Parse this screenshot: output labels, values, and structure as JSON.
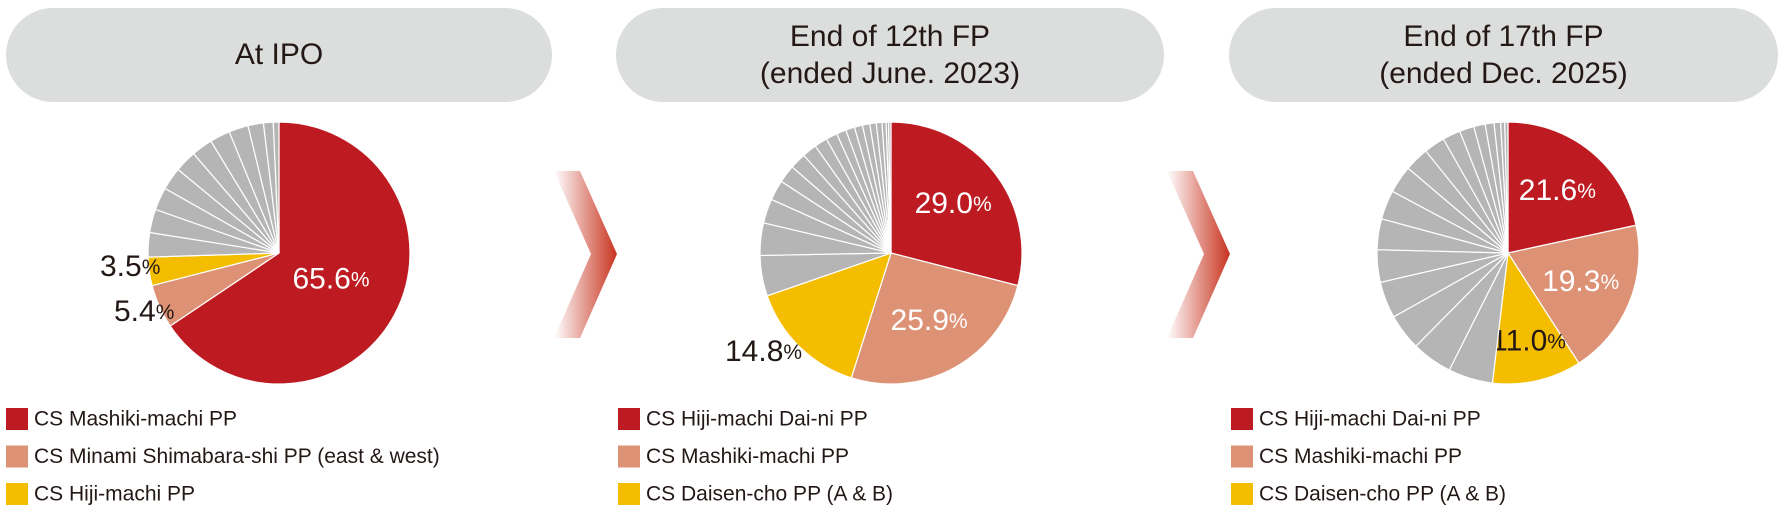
{
  "chart_data": [
    {
      "type": "pie",
      "title": "At IPO",
      "categories": [
        "CS Mashiki-machi PP",
        "CS Minami Shimabara-shi PP (east & west)",
        "CS Hiji-machi PP",
        null,
        null,
        null,
        null,
        null,
        null,
        null,
        null,
        null,
        null,
        null
      ],
      "values": [
        65.6,
        5.4,
        3.5,
        3.0,
        2.9,
        2.8,
        2.8,
        2.7,
        2.6,
        2.5,
        2.4,
        1.9,
        1.2,
        0.7
      ],
      "value_labels": [
        "65.6%",
        "5.4%",
        "3.5%",
        null,
        null,
        null,
        null,
        null,
        null,
        null,
        null,
        null,
        null,
        null
      ],
      "colors": [
        "#be1a21",
        "#de9275",
        "#f5bd00",
        "#b5b5b5",
        "#b5b5b5",
        "#b5b5b5",
        "#b5b5b5",
        "#b5b5b5",
        "#b5b5b5",
        "#b5b5b5",
        "#b5b5b5",
        "#b5b5b5",
        "#b5b5b5",
        "#b5b5b5"
      ]
    },
    {
      "type": "pie",
      "title": "End of 12th FP",
      "subtitle": "(ended June. 2023)",
      "categories": [
        "CS Hiji-machi Dai-ni PP",
        "CS Mashiki-machi PP",
        "CS Daisen-cho PP (A & B)",
        null,
        null,
        null,
        null,
        null,
        null,
        null,
        null,
        null,
        null,
        null,
        null,
        null,
        null,
        null,
        null,
        null,
        null
      ],
      "values": [
        29.0,
        25.9,
        14.8,
        5.0,
        4.0,
        3.0,
        2.5,
        2.2,
        2.0,
        1.8,
        1.6,
        1.4,
        1.2,
        1.1,
        1.0,
        0.9,
        0.8,
        0.7,
        0.5,
        0.3,
        0.3
      ],
      "value_labels": [
        "29.0%",
        "25.9%",
        "14.8%",
        null,
        null,
        null,
        null,
        null,
        null,
        null,
        null,
        null,
        null,
        null,
        null,
        null,
        null,
        null,
        null,
        null,
        null
      ],
      "colors": [
        "#be1a21",
        "#de9275",
        "#f5bd00",
        "#b5b5b5",
        "#b5b5b5",
        "#b5b5b5",
        "#b5b5b5",
        "#b5b5b5",
        "#b5b5b5",
        "#b5b5b5",
        "#b5b5b5",
        "#b5b5b5",
        "#b5b5b5",
        "#b5b5b5",
        "#b5b5b5",
        "#b5b5b5",
        "#b5b5b5",
        "#b5b5b5",
        "#b5b5b5",
        "#b5b5b5",
        "#b5b5b5"
      ]
    },
    {
      "type": "pie",
      "title": "End of 17th FP",
      "subtitle": "(ended Dec. 2025)",
      "categories": [
        "CS Hiji-machi Dai-ni PP",
        "CS Mashiki-machi PP",
        "CS Daisen-cho PP (A & B)",
        null,
        null,
        null,
        null,
        null,
        null,
        null,
        null,
        null,
        null,
        null,
        null,
        null,
        null,
        null,
        null,
        null
      ],
      "values": [
        21.6,
        19.3,
        11.0,
        5.5,
        5.0,
        4.5,
        4.5,
        4.0,
        3.8,
        3.6,
        3.4,
        3.0,
        2.6,
        2.2,
        1.8,
        1.4,
        1.1,
        0.8,
        0.5,
        0.4
      ],
      "value_labels": [
        "21.6%",
        "19.3%",
        "11.0%",
        null,
        null,
        null,
        null,
        null,
        null,
        null,
        null,
        null,
        null,
        null,
        null,
        null,
        null,
        null,
        null,
        null
      ],
      "colors": [
        "#be1a21",
        "#de9275",
        "#f5bd00",
        "#b5b5b5",
        "#b5b5b5",
        "#b5b5b5",
        "#b5b5b5",
        "#b5b5b5",
        "#b5b5b5",
        "#b5b5b5",
        "#b5b5b5",
        "#b5b5b5",
        "#b5b5b5",
        "#b5b5b5",
        "#b5b5b5",
        "#b5b5b5",
        "#b5b5b5",
        "#b5b5b5",
        "#b5b5b5",
        "#b5b5b5"
      ]
    }
  ]
}
